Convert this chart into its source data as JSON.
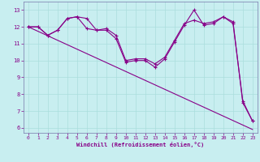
{
  "xlabel": "Windchill (Refroidissement éolien,°C)",
  "background_color": "#c8eef0",
  "grid_color": "#aadddd",
  "line_color": "#880088",
  "spine_color": "#7777aa",
  "x_values": [
    0,
    1,
    2,
    3,
    4,
    5,
    6,
    7,
    8,
    9,
    10,
    11,
    12,
    13,
    14,
    15,
    16,
    17,
    18,
    19,
    20,
    21,
    22,
    23
  ],
  "line1": [
    12.0,
    12.0,
    11.5,
    11.8,
    12.5,
    12.6,
    12.5,
    11.8,
    11.8,
    11.3,
    9.9,
    10.0,
    10.0,
    9.6,
    10.1,
    11.1,
    12.1,
    13.0,
    12.1,
    12.2,
    12.6,
    12.3,
    7.5,
    6.4
  ],
  "line2": [
    12.0,
    12.0,
    11.5,
    11.8,
    12.5,
    12.6,
    11.9,
    11.8,
    11.9,
    11.5,
    10.0,
    10.1,
    10.1,
    9.8,
    10.2,
    11.2,
    12.2,
    12.4,
    12.2,
    12.3,
    12.6,
    12.2,
    7.6,
    6.4
  ],
  "line3_x": [
    0,
    23
  ],
  "line3_y": [
    12.0,
    5.9
  ],
  "ylim": [
    5.7,
    13.5
  ],
  "xlim": [
    -0.5,
    23.5
  ],
  "yticks": [
    6,
    7,
    8,
    9,
    10,
    11,
    12,
    13
  ],
  "xticks": [
    0,
    1,
    2,
    3,
    4,
    5,
    6,
    7,
    8,
    9,
    10,
    11,
    12,
    13,
    14,
    15,
    16,
    17,
    18,
    19,
    20,
    21,
    22,
    23
  ]
}
